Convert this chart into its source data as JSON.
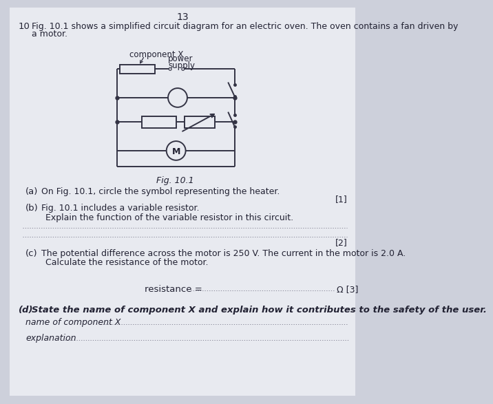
{
  "page_number": "13",
  "question_number": "10",
  "question_text_line1": "Fig. 10.1 shows a simplified circuit diagram for an electric oven. The oven contains a fan driven by",
  "question_text_line2": "a motor.",
  "fig_label": "Fig. 10.1",
  "component_x_label": "component X",
  "power_supply_label_line1": "power",
  "power_supply_label_line2": "supply",
  "part_a_label": "(a)",
  "part_a_text": "On Fig. 10.1, circle the symbol representing the heater.",
  "part_a_marks": "[1]",
  "part_b_label": "(b)",
  "part_b_text1": "Fig. 10.1 includes a variable resistor.",
  "part_b_text2": "Explain the function of the variable resistor in this circuit.",
  "part_b_marks": "[2]",
  "part_c_label": "(c)",
  "part_c_text1": "The potential difference across the motor is 250 V. The current in the motor is 2.0 A.",
  "part_c_text2": "Calculate the resistance of the motor.",
  "part_c_ans_label": "resistance = ",
  "part_c_ans_unit": "Ω [3]",
  "part_d_label": "(d)",
  "part_d_text": "State the name of component X and explain how it contributes to the safety of the user.",
  "part_d_name_label": "name of component X",
  "part_d_exp_label": "explanation",
  "bg_color": "#cdd0db",
  "paper_color": "#e8eaf0",
  "text_color": "#222233",
  "circuit_color": "#333344",
  "lw": 1.4
}
